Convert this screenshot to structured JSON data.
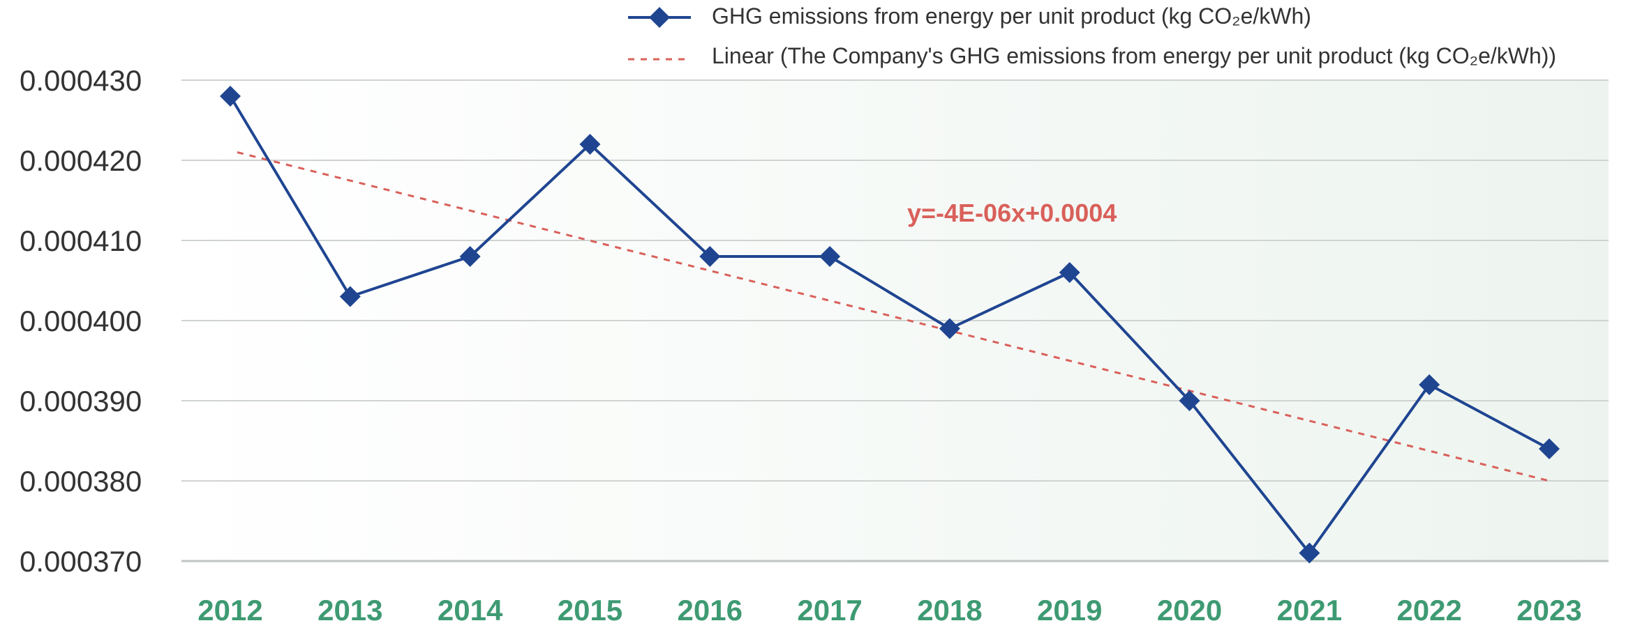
{
  "colors": {
    "series": "#1F4591",
    "trend": "#D9605A",
    "xtick": "#3E9A72",
    "grid": "#CFD3D2",
    "axis": "#BFC5C3",
    "bg_left": "#FFFFFF",
    "bg_right": "#EDF4EF"
  },
  "chart_data": {
    "type": "line",
    "categories": [
      "2012",
      "2013",
      "2014",
      "2015",
      "2016",
      "2017",
      "2018",
      "2019",
      "2020",
      "2021",
      "2022",
      "2023"
    ],
    "series": [
      {
        "name": "GHG emissions from energy per unit product (kg CO₂e/kWh)",
        "marker": "diamond",
        "values": [
          0.000428,
          0.000403,
          0.000408,
          0.000422,
          0.000408,
          0.000408,
          0.000399,
          0.000406,
          0.00039,
          0.000371,
          0.000392,
          0.000384
        ]
      }
    ],
    "trendline": {
      "name": "Linear (The Company's GHG emissions from energy per unit product (kg CO₂e/kWh))",
      "equation": "y=-4E-06x+0.0004",
      "start": 0.000421,
      "end": 0.00038
    },
    "yticks": [
      "0.000430",
      "0.000420",
      "0.000410",
      "0.000400",
      "0.000390",
      "0.000380",
      "0.000370"
    ],
    "ylim": [
      0.00037,
      0.00043
    ],
    "grid": true,
    "legend": "top-right"
  }
}
